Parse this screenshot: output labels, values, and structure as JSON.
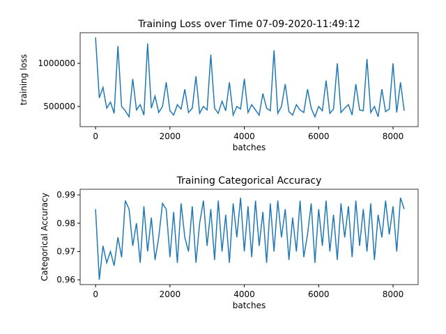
{
  "chart_data": [
    {
      "type": "line",
      "title": "Training Loss over Time 07-09-2020-11:49:12",
      "xlabel": "batches",
      "ylabel": "training loss",
      "color": "#1f77b4",
      "x": [
        0,
        100,
        200,
        300,
        400,
        500,
        600,
        700,
        800,
        900,
        1000,
        1100,
        1200,
        1300,
        1400,
        1500,
        1600,
        1700,
        1800,
        1900,
        2000,
        2100,
        2200,
        2300,
        2400,
        2500,
        2600,
        2700,
        2800,
        2900,
        3000,
        3100,
        3200,
        3300,
        3400,
        3500,
        3600,
        3700,
        3800,
        3900,
        4000,
        4100,
        4200,
        4300,
        4400,
        4500,
        4600,
        4700,
        4800,
        4900,
        5000,
        5100,
        5200,
        5300,
        5400,
        5500,
        5600,
        5700,
        5800,
        5900,
        6000,
        6100,
        6200,
        6300,
        6400,
        6500,
        6600,
        6700,
        6800,
        6900,
        7000,
        7100,
        7200,
        7300,
        7400,
        7500,
        7600,
        7700,
        7800,
        7900,
        8000,
        8100,
        8200,
        8300
      ],
      "values": [
        1300000,
        600000,
        720000,
        480000,
        550000,
        420000,
        1200000,
        500000,
        450000,
        380000,
        820000,
        460000,
        520000,
        400000,
        1230000,
        480000,
        620000,
        430000,
        500000,
        780000,
        450000,
        400000,
        520000,
        470000,
        700000,
        430000,
        480000,
        850000,
        420000,
        500000,
        460000,
        1100000,
        480000,
        420000,
        560000,
        450000,
        780000,
        400000,
        500000,
        470000,
        820000,
        430000,
        520000,
        460000,
        400000,
        650000,
        480000,
        450000,
        1150000,
        420000,
        500000,
        760000,
        440000,
        400000,
        520000,
        460000,
        430000,
        700000,
        480000,
        380000,
        500000,
        450000,
        800000,
        420000,
        470000,
        1000000,
        430000,
        480000,
        520000,
        400000,
        760000,
        460000,
        450000,
        1050000,
        430000,
        500000,
        380000,
        700000,
        440000,
        470000,
        1000000,
        430000,
        780000,
        450000
      ],
      "xlim": [
        -415,
        8675
      ],
      "ylim": [
        266000,
        1355000
      ],
      "xticks": [
        0,
        2000,
        4000,
        6000,
        8000
      ],
      "yticks": [
        500000,
        1000000
      ]
    },
    {
      "type": "line",
      "title": "Training Categorical Accuracy",
      "xlabel": "batches",
      "ylabel": "Categorical Accuracy",
      "color": "#1f77b4",
      "x": [
        0,
        100,
        200,
        300,
        400,
        500,
        600,
        700,
        800,
        900,
        1000,
        1100,
        1200,
        1300,
        1400,
        1500,
        1600,
        1700,
        1800,
        1900,
        2000,
        2100,
        2200,
        2300,
        2400,
        2500,
        2600,
        2700,
        2800,
        2900,
        3000,
        3100,
        3200,
        3300,
        3400,
        3500,
        3600,
        3700,
        3800,
        3900,
        4000,
        4100,
        4200,
        4300,
        4400,
        4500,
        4600,
        4700,
        4800,
        4900,
        5000,
        5100,
        5200,
        5300,
        5400,
        5500,
        5600,
        5700,
        5800,
        5900,
        6000,
        6100,
        6200,
        6300,
        6400,
        6500,
        6600,
        6700,
        6800,
        6900,
        7000,
        7100,
        7200,
        7300,
        7400,
        7500,
        7600,
        7700,
        7800,
        7900,
        8000,
        8100,
        8200,
        8300
      ],
      "values": [
        0.985,
        0.96,
        0.972,
        0.966,
        0.97,
        0.965,
        0.975,
        0.968,
        0.988,
        0.985,
        0.972,
        0.98,
        0.966,
        0.986,
        0.97,
        0.982,
        0.967,
        0.975,
        0.987,
        0.985,
        0.968,
        0.984,
        0.966,
        0.987,
        0.975,
        0.97,
        0.986,
        0.966,
        0.98,
        0.988,
        0.972,
        0.985,
        0.967,
        0.988,
        0.97,
        0.983,
        0.966,
        0.987,
        0.975,
        0.989,
        0.97,
        0.986,
        0.968,
        0.988,
        0.972,
        0.984,
        0.966,
        0.987,
        0.97,
        0.988,
        0.975,
        0.985,
        0.967,
        0.982,
        0.97,
        0.988,
        0.968,
        0.976,
        0.987,
        0.966,
        0.985,
        0.972,
        0.988,
        0.97,
        0.983,
        0.967,
        0.987,
        0.975,
        0.986,
        0.968,
        0.988,
        0.972,
        0.985,
        0.97,
        0.987,
        0.967,
        0.983,
        0.975,
        0.988,
        0.976,
        0.986,
        0.97,
        0.989,
        0.985
      ],
      "xlim": [
        -415,
        8675
      ],
      "ylim": [
        0.9583,
        0.992
      ],
      "xticks": [
        0,
        2000,
        4000,
        6000,
        8000
      ],
      "yticks": [
        0.96,
        0.97,
        0.98,
        0.99
      ]
    }
  ]
}
